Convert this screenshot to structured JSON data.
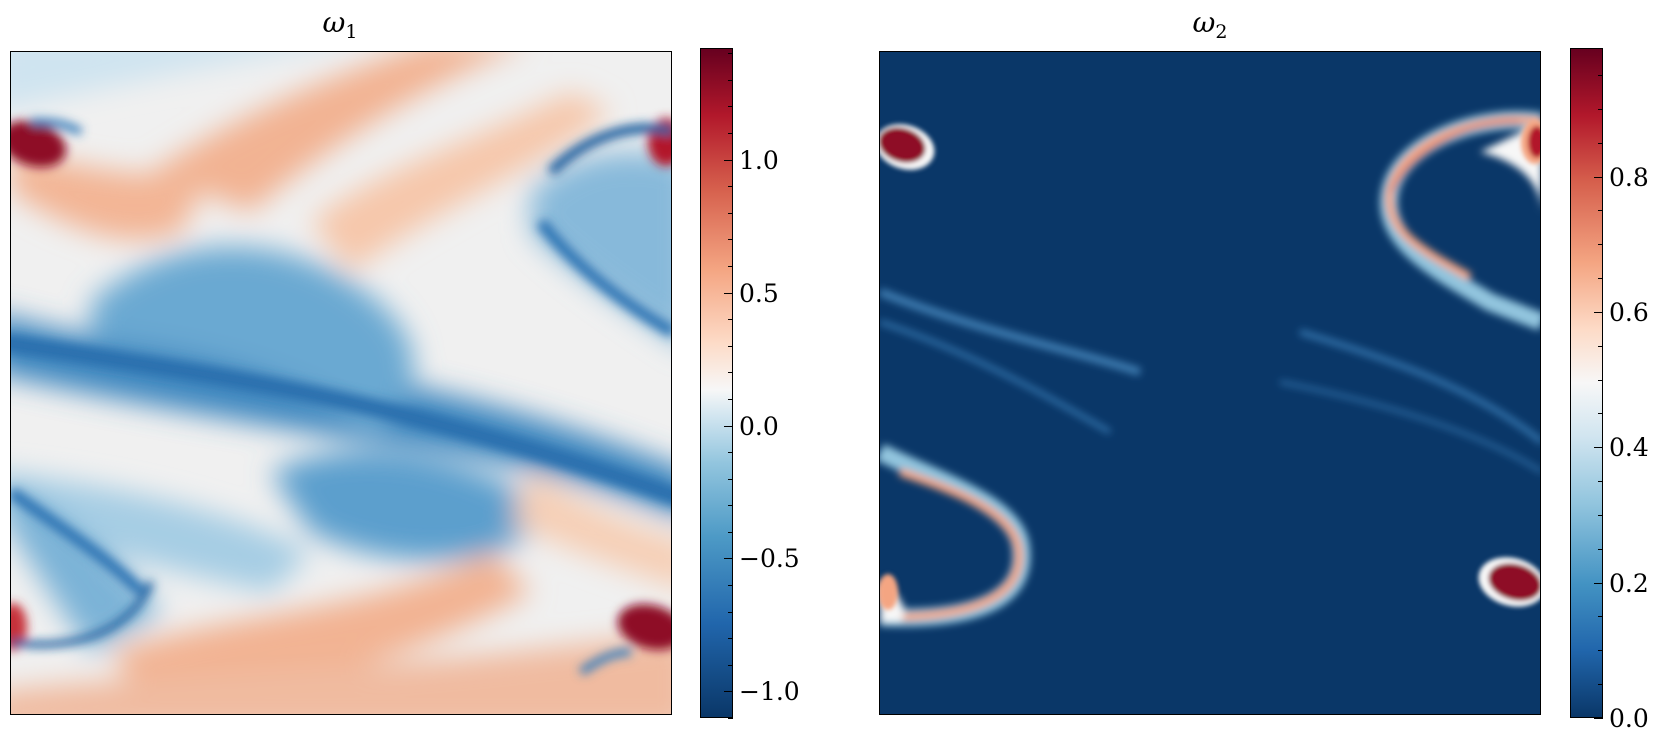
{
  "chart_data": [
    {
      "type": "heatmap",
      "title": "ω₁",
      "title_symbol": "ω",
      "title_sub": "1",
      "colormap": "RdBu_r",
      "colorbar": {
        "min": -1.1,
        "max": 1.42,
        "ticks": [
          -1.0,
          -0.5,
          0.0,
          0.5,
          1.0
        ],
        "tick_labels": [
          "−1.0",
          "−0.5",
          "0.0",
          "0.5",
          "1.0"
        ],
        "minor_step": 0.1
      },
      "grid": false,
      "legend": "colorbar-right"
    },
    {
      "type": "heatmap",
      "title": "ω₂",
      "title_symbol": "ω",
      "title_sub": "2",
      "colormap": "RdBu_r",
      "colorbar": {
        "min": 0.0,
        "max": 0.99,
        "ticks": [
          0.0,
          0.2,
          0.4,
          0.6,
          0.8
        ],
        "tick_labels": [
          "0.0",
          "0.2",
          "0.4",
          "0.6",
          "0.8"
        ],
        "minor_step": 0.05
      },
      "grid": false,
      "legend": "colorbar-right"
    }
  ],
  "colors": {
    "deep_red": "#67001f",
    "red": "#b2182b",
    "orange": "#e7846a",
    "light_orange": "#f7c5a8",
    "white": "#f7f7f7",
    "light_blue": "#bcdaea",
    "blue": "#4d9ac6",
    "dark_blue": "#2166ac",
    "navy": "#0a3768"
  }
}
